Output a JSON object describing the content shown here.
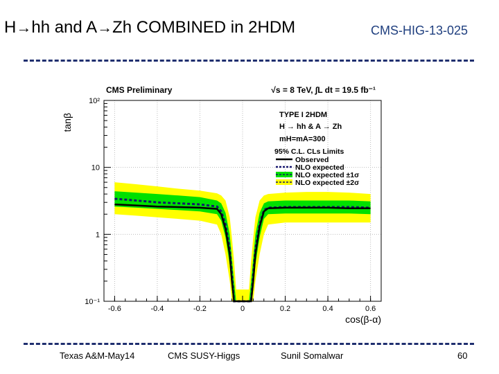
{
  "slide": {
    "title_a": "H",
    "title_arrow": "→",
    "title_b": "hh and A",
    "title_c": "Zh COMBINED in 2HDM",
    "reference": "CMS-HIG-13-025"
  },
  "footer": {
    "left": "Texas A&M-May14",
    "center": "CMS SUSY-Higgs",
    "author": "Sunil Somalwar",
    "page": "60"
  },
  "colors": {
    "band2": "#ffff00",
    "band1": "#00e000",
    "observed": "#000000",
    "expected": "#14146e",
    "accent": "#1f3f7f"
  },
  "chart_data": {
    "type": "line",
    "header_left": "CMS Preliminary",
    "header_right": "√s = 8 TeV, ∫L dt = 19.5 fb⁻¹",
    "xlabel": "cos(β-α)",
    "ylabel": "tanβ",
    "xlim": [
      -0.65,
      0.65
    ],
    "ylim": [
      0.1,
      100
    ],
    "yscale": "log",
    "grid": true,
    "x_ticks": [
      "-0.6",
      "-0.4",
      "-0.2",
      "0",
      "0.2",
      "0.4",
      "0.6"
    ],
    "y_ticks": [
      "10⁻¹",
      "1",
      "10",
      "10²"
    ],
    "model_lines": [
      "TYPE I 2HDM",
      "H → hh & A → Zh",
      "mH=mA=300"
    ],
    "legend_title": "95% C.L. CLs Limits",
    "legend_position": "top-right",
    "series": [
      {
        "name": "Observed",
        "style": "solid",
        "x": [
          -0.6,
          -0.55,
          -0.5,
          -0.45,
          -0.4,
          -0.3,
          -0.2,
          -0.12,
          -0.1,
          -0.08,
          -0.06,
          -0.05,
          -0.04,
          -0.03,
          0.03,
          0.04,
          0.05,
          0.06,
          0.08,
          0.1,
          0.12,
          0.2,
          0.3,
          0.4,
          0.5,
          0.6
        ],
        "y": [
          2.8,
          2.75,
          2.7,
          2.65,
          2.6,
          2.55,
          2.5,
          2.4,
          2.0,
          1.2,
          0.5,
          0.2,
          0.1,
          0.1,
          0.1,
          0.1,
          0.2,
          0.5,
          1.3,
          2.2,
          2.45,
          2.5,
          2.5,
          2.5,
          2.45,
          2.45
        ]
      },
      {
        "name": "NLO expected",
        "style": "dashed",
        "x": [
          -0.6,
          -0.55,
          -0.5,
          -0.45,
          -0.4,
          -0.3,
          -0.2,
          -0.12,
          -0.1,
          -0.08,
          -0.06,
          -0.05,
          -0.04,
          -0.03,
          0.03,
          0.04,
          0.05,
          0.06,
          0.08,
          0.1,
          0.12,
          0.2,
          0.3,
          0.4,
          0.5,
          0.6
        ],
        "y": [
          3.4,
          3.3,
          3.2,
          3.1,
          3.0,
          2.9,
          2.8,
          2.6,
          2.2,
          1.4,
          0.6,
          0.25,
          0.1,
          0.1,
          0.1,
          0.1,
          0.25,
          0.6,
          1.4,
          2.3,
          2.5,
          2.55,
          2.55,
          2.55,
          2.55,
          2.5
        ]
      },
      {
        "name": "NLO expected ±1σ",
        "style": "band",
        "x": [
          -0.6,
          -0.5,
          -0.4,
          -0.3,
          -0.2,
          -0.12,
          -0.1,
          -0.08,
          -0.06,
          -0.05,
          -0.04,
          -0.03,
          0.03,
          0.04,
          0.05,
          0.06,
          0.08,
          0.1,
          0.12,
          0.2,
          0.3,
          0.4,
          0.5,
          0.6
        ],
        "low": [
          2.6,
          2.5,
          2.4,
          2.3,
          2.2,
          2.0,
          1.6,
          0.9,
          0.35,
          0.15,
          0.1,
          0.1,
          0.1,
          0.1,
          0.15,
          0.35,
          0.9,
          1.7,
          2.0,
          2.05,
          2.05,
          2.05,
          2.05,
          2.0
        ],
        "high": [
          4.4,
          4.2,
          4.0,
          3.8,
          3.6,
          3.2,
          2.9,
          2.1,
          1.0,
          0.45,
          0.2,
          0.1,
          0.1,
          0.2,
          0.45,
          1.0,
          2.1,
          2.9,
          3.1,
          3.2,
          3.2,
          3.2,
          3.2,
          3.1
        ]
      },
      {
        "name": "NLO expected ±2σ",
        "style": "band",
        "x": [
          -0.6,
          -0.5,
          -0.4,
          -0.3,
          -0.2,
          -0.12,
          -0.1,
          -0.08,
          -0.06,
          -0.05,
          -0.04,
          -0.03,
          0.03,
          0.04,
          0.05,
          0.06,
          0.08,
          0.1,
          0.12,
          0.2,
          0.3,
          0.4,
          0.5,
          0.6
        ],
        "low": [
          2.0,
          1.9,
          1.8,
          1.7,
          1.6,
          1.4,
          1.0,
          0.5,
          0.2,
          0.1,
          0.1,
          0.1,
          0.1,
          0.1,
          0.1,
          0.2,
          0.5,
          1.0,
          1.4,
          1.5,
          1.5,
          1.5,
          1.5,
          1.5
        ],
        "high": [
          6.0,
          5.6,
          5.2,
          4.8,
          4.5,
          4.1,
          3.8,
          3.2,
          1.8,
          0.9,
          0.4,
          0.15,
          0.15,
          0.4,
          0.9,
          1.8,
          3.2,
          3.8,
          4.0,
          4.2,
          4.3,
          4.3,
          4.2,
          4.0
        ]
      }
    ]
  }
}
